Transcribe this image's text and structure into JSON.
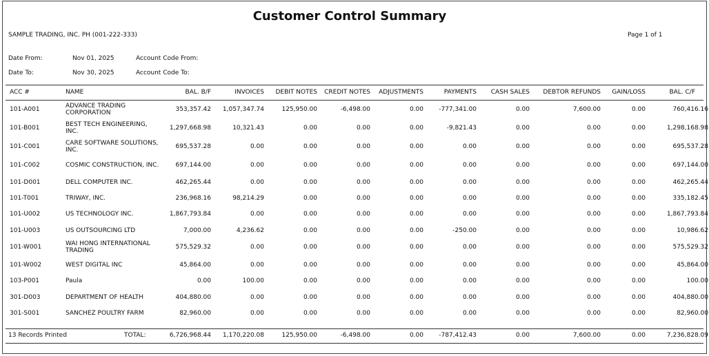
{
  "header": {
    "title": "Customer Control Summary",
    "company": "SAMPLE TRADING, INC. PH (001-222-333)",
    "page": "Page 1 of 1",
    "date_from_label": "Date From:",
    "date_from": "Nov 01, 2025",
    "account_code_from_label": "Account Code From:",
    "date_to_label": "Date To:",
    "date_to": "Nov 30, 2025",
    "account_code_to_label": "Account Code To:"
  },
  "table": {
    "columns": [
      "ACC #",
      "NAME",
      "BAL. B/F",
      "INVOICES",
      "DEBIT NOTES",
      "CREDIT NOTES",
      "ADJUSTMENTS",
      "PAYMENTS",
      "CASH SALES",
      "DEBTOR REFUNDS",
      "GAIN/LOSS",
      "BAL. C/F"
    ],
    "rows": [
      [
        "101-A001",
        "ADVANCE TRADING CORPORATION",
        "353,357.42",
        "1,057,347.74",
        "125,950.00",
        "-6,498.00",
        "0.00",
        "-777,341.00",
        "0.00",
        "7,600.00",
        "0.00",
        "760,416.16"
      ],
      [
        "101-B001",
        "BEST TECH ENGINEERING, INC.",
        "1,297,668.98",
        "10,321.43",
        "0.00",
        "0.00",
        "0.00",
        "-9,821.43",
        "0.00",
        "0.00",
        "0.00",
        "1,298,168.98"
      ],
      [
        "101-C001",
        "CARE SOFTWARE SOLUTIONS, INC.",
        "695,537.28",
        "0.00",
        "0.00",
        "0.00",
        "0.00",
        "0.00",
        "0.00",
        "0.00",
        "0.00",
        "695,537.28"
      ],
      [
        "101-C002",
        "COSMIC CONSTRUCTION, INC.",
        "697,144.00",
        "0.00",
        "0.00",
        "0.00",
        "0.00",
        "0.00",
        "0.00",
        "0.00",
        "0.00",
        "697,144.00"
      ],
      [
        "101-D001",
        "DELL COMPUTER INC.",
        "462,265.44",
        "0.00",
        "0.00",
        "0.00",
        "0.00",
        "0.00",
        "0.00",
        "0.00",
        "0.00",
        "462,265.44"
      ],
      [
        "101-T001",
        "TRIWAY, INC.",
        "236,968.16",
        "98,214.29",
        "0.00",
        "0.00",
        "0.00",
        "0.00",
        "0.00",
        "0.00",
        "0.00",
        "335,182.45"
      ],
      [
        "101-U002",
        "US TECHNOLOGY  INC.",
        "1,867,793.84",
        "0.00",
        "0.00",
        "0.00",
        "0.00",
        "0.00",
        "0.00",
        "0.00",
        "0.00",
        "1,867,793.84"
      ],
      [
        "101-U003",
        "US OUTSOURCING LTD",
        "7,000.00",
        "4,236.62",
        "0.00",
        "0.00",
        "0.00",
        "-250.00",
        "0.00",
        "0.00",
        "0.00",
        "10,986.62"
      ],
      [
        "101-W001",
        "WAI HONG INTERNATIONAL TRADING",
        "575,529.32",
        "0.00",
        "0.00",
        "0.00",
        "0.00",
        "0.00",
        "0.00",
        "0.00",
        "0.00",
        "575,529.32"
      ],
      [
        "101-W002",
        "WEST DIGITAL INC",
        "45,864.00",
        "0.00",
        "0.00",
        "0.00",
        "0.00",
        "0.00",
        "0.00",
        "0.00",
        "0.00",
        "45,864.00"
      ],
      [
        "103-P001",
        "Paula",
        "0.00",
        "100.00",
        "0.00",
        "0.00",
        "0.00",
        "0.00",
        "0.00",
        "0.00",
        "0.00",
        "100.00"
      ],
      [
        "301-D003",
        "DEPARTMENT OF HEALTH",
        "404,880.00",
        "0.00",
        "0.00",
        "0.00",
        "0.00",
        "0.00",
        "0.00",
        "0.00",
        "0.00",
        "404,880.00"
      ],
      [
        "301-S001",
        "SANCHEZ POULTRY FARM",
        "82,960.00",
        "0.00",
        "0.00",
        "0.00",
        "0.00",
        "0.00",
        "0.00",
        "0.00",
        "0.00",
        "82,960.00"
      ]
    ],
    "footer": {
      "records": "13 Records Printed",
      "total_label": "TOTAL:",
      "totals": [
        "6,726,968.44",
        "1,170,220.08",
        "125,950.00",
        "-6,498.00",
        "0.00",
        "-787,412.43",
        "0.00",
        "7,600.00",
        "0.00",
        "7,236,828.09"
      ]
    }
  }
}
